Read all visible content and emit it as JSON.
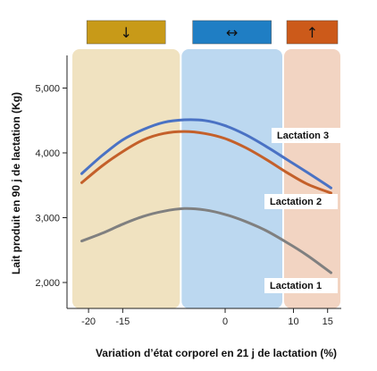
{
  "chart_data": {
    "type": "line",
    "xlabel": "Variation d’état corporel en 21 j de lactation (%)",
    "ylabel": "Lait produit en 90 j de lactation (Kg)",
    "xlim": [
      -22.5,
      17
    ],
    "ylim": [
      1600,
      5600
    ],
    "x_ticks": [
      -20,
      -15,
      0,
      10,
      15
    ],
    "x_tick_labels": [
      "-20",
      "-15",
      "0",
      "10",
      "15"
    ],
    "y_ticks": [
      2000,
      3000,
      4000,
      5000
    ],
    "y_tick_labels": [
      "2,000",
      "3,000",
      "4,000",
      "5,000"
    ],
    "grid": false,
    "zones": [
      {
        "from": -22.5,
        "to": -6.5,
        "color": "#f0e2c0",
        "symbol": "↓",
        "badge_color": "#c89a18"
      },
      {
        "from": -6.5,
        "to": 8.5,
        "color": "#bcd8f0",
        "symbol": "↔",
        "badge_color": "#1f7ec4"
      },
      {
        "from": 8.5,
        "to": 17,
        "color": "#f2d4c2",
        "symbol": "↑",
        "badge_color": "#cc5a1a"
      }
    ],
    "series": [
      {
        "name": "Lactation 3",
        "color": "#4a72c4",
        "x": [
          -21,
          -18,
          -15,
          -12,
          -9,
          -6,
          -3,
          0,
          3,
          6,
          9,
          12,
          15.5
        ],
        "y": [
          3680,
          3960,
          4200,
          4360,
          4470,
          4510,
          4500,
          4420,
          4280,
          4100,
          3900,
          3700,
          3460
        ]
      },
      {
        "name": "Lactation 2",
        "color": "#c4602a",
        "x": [
          -21,
          -18,
          -15,
          -12,
          -9,
          -6,
          -3,
          0,
          3,
          6,
          9,
          12,
          15.5
        ],
        "y": [
          3540,
          3800,
          4020,
          4200,
          4300,
          4330,
          4300,
          4220,
          4080,
          3900,
          3700,
          3520,
          3380
        ]
      },
      {
        "name": "Lactation 1",
        "color": "#808080",
        "x": [
          -21,
          -18,
          -15,
          -12,
          -9,
          -6,
          -3,
          0,
          3,
          6,
          9,
          12,
          15.5
        ],
        "y": [
          2640,
          2760,
          2900,
          3020,
          3100,
          3140,
          3120,
          3050,
          2940,
          2800,
          2620,
          2420,
          2150
        ]
      }
    ]
  }
}
